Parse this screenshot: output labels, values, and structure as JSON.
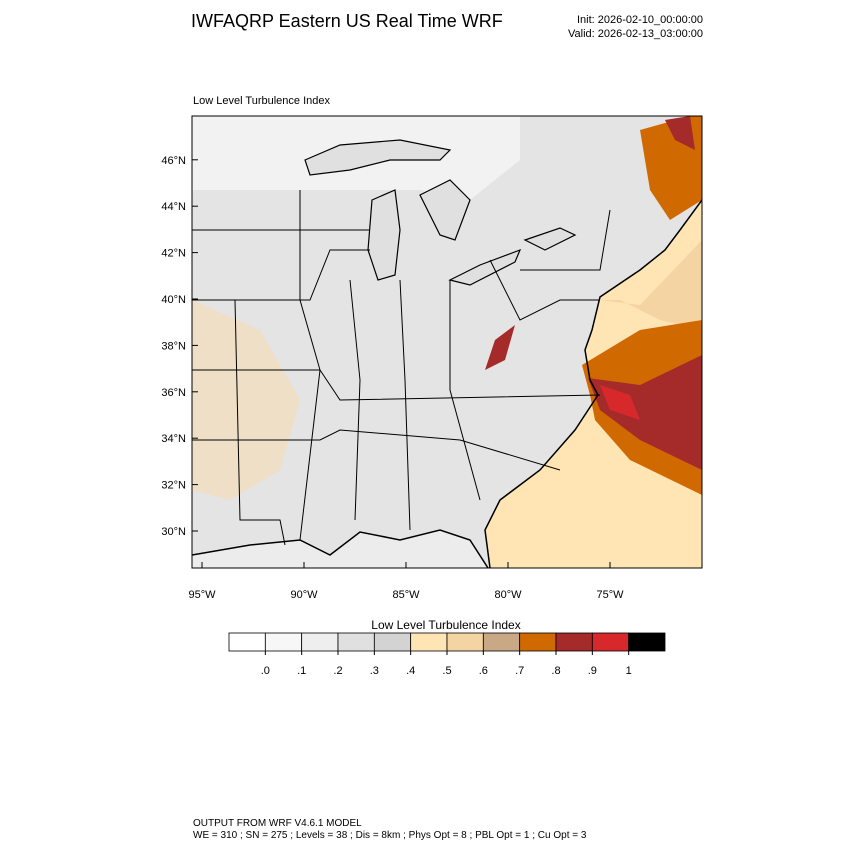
{
  "header": {
    "title": "IWFAQRP Eastern US Real Time WRF",
    "init": "Init: 2026-02-10_00:00:00",
    "valid": "Valid: 2026-02-13_03:00:00"
  },
  "map": {
    "subtitle": "Low Level Turbulence Index",
    "lat_ticks": [
      {
        "value": 30,
        "label": "30°N"
      },
      {
        "value": 32,
        "label": "32°N"
      },
      {
        "value": 34,
        "label": "34°N"
      },
      {
        "value": 36,
        "label": "36°N"
      },
      {
        "value": 38,
        "label": "38°N"
      },
      {
        "value": 40,
        "label": "40°N"
      },
      {
        "value": 42,
        "label": "42°N"
      },
      {
        "value": 44,
        "label": "44°N"
      },
      {
        "value": 46,
        "label": "46°N"
      }
    ],
    "lon_ticks": [
      {
        "value": -95,
        "label": "95°W"
      },
      {
        "value": -90,
        "label": "90°W"
      },
      {
        "value": -85,
        "label": "85°W"
      },
      {
        "value": -80,
        "label": "80°W"
      },
      {
        "value": -75,
        "label": "75°W"
      }
    ]
  },
  "colorbar": {
    "title": "Low Level Turbulence Index",
    "colors": [
      "#ffffff",
      "#f7f7f7",
      "#eeeeee",
      "#e0e0e0",
      "#d3d3d3",
      "#ffe4b4",
      "#f5d4a4",
      "#c9a985",
      "#d06a00",
      "#a52a2a",
      "#d7282c",
      "#000000"
    ],
    "ticks": [
      {
        "value": 0,
        "label": ".0"
      },
      {
        "value": 0.1,
        "label": ".1"
      },
      {
        "value": 0.2,
        "label": ".2"
      },
      {
        "value": 0.3,
        "label": ".3"
      },
      {
        "value": 0.4,
        "label": ".4"
      },
      {
        "value": 0.5,
        "label": ".5"
      },
      {
        "value": 0.6,
        "label": ".6"
      },
      {
        "value": 0.7,
        "label": ".7"
      },
      {
        "value": 0.8,
        "label": ".8"
      },
      {
        "value": 0.9,
        "label": ".9"
      },
      1
    ]
  },
  "footer": {
    "line1": "OUTPUT FROM WRF V4.6.1 MODEL",
    "line2": "WE = 310 ; SN = 275 ; Levels = 38 ; Dis = 8km ; Phys Opt = 8 ; PBL Opt = 1 ; Cu Opt = 3"
  }
}
